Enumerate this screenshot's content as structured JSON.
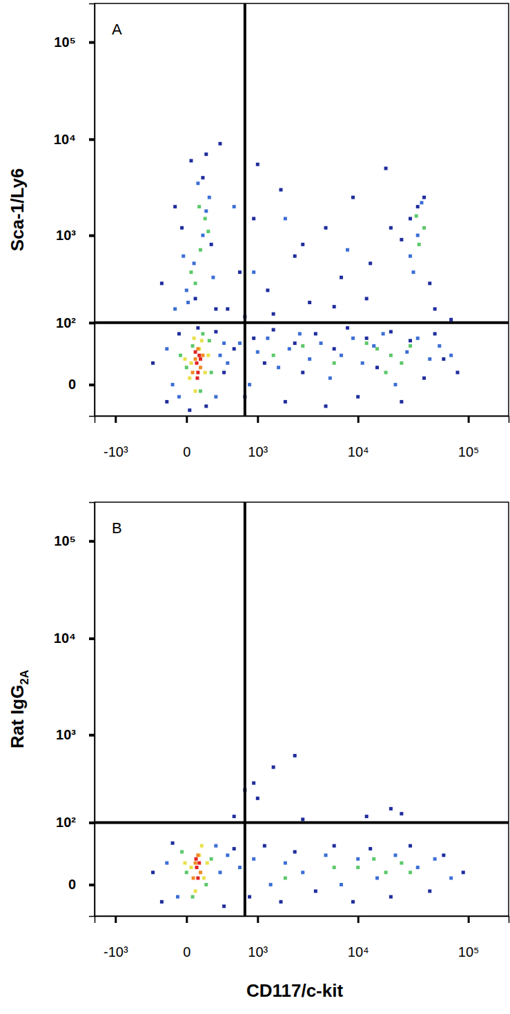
{
  "chart_data": [
    {
      "type": "scatter",
      "title": "A",
      "y_label": "Sca-1/Ly6",
      "log": true,
      "marker": "square",
      "xlim": [
        -1700,
        230000
      ],
      "ylim": [
        -33,
        250000
      ],
      "xticks": [
        {
          "value": -1000,
          "label": "-10³"
        },
        0,
        {
          "value": 1000,
          "label": "10³"
        },
        {
          "value": 10000,
          "label": "10⁴"
        },
        {
          "value": 100000,
          "label": "10⁵"
        }
      ],
      "yticks": [
        0,
        {
          "value": 100,
          "label": "10²"
        },
        {
          "value": 1000,
          "label": "10³"
        },
        {
          "value": 10000,
          "label": "10⁴"
        },
        {
          "value": 100000,
          "label": "10⁵"
        }
      ],
      "quadrant": {
        "x": 700,
        "y": 100
      },
      "series": [
        {
          "color": "#1f2d9e",
          "x": [
            -300,
            -150,
            -50,
            20,
            80,
            150,
            250,
            350,
            500,
            700,
            900,
            1200,
            1500,
            2000,
            2500,
            3000,
            4000,
            5000,
            6000,
            8000,
            10000,
            12000,
            15000,
            20000,
            25000,
            30000,
            40000,
            50000,
            60000,
            80000,
            -200,
            -80,
            30,
            120,
            200,
            400,
            600,
            900,
            1300,
            1800,
            2500,
            3500,
            5000,
            7000,
            9000,
            13000,
            18000,
            25000,
            35000,
            45000,
            30000,
            40000,
            1000,
            300,
            150,
            -30,
            60,
            250,
            700,
            1500,
            3000,
            6000,
            12000,
            20000,
            50000,
            70000
          ],
          "values": [
            20,
            -15,
            70,
            -25,
            85,
            -20,
            75,
            10,
            40,
            -10,
            60,
            20,
            80,
            -15,
            50,
            10,
            70,
            -20,
            40,
            85,
            -10,
            60,
            15,
            75,
            -15,
            55,
            5,
            70,
            25,
            10,
            300,
            2000,
            6000,
            4000,
            800,
            150,
            400,
            1500,
            250,
            3000,
            600,
            180,
            1200,
            350,
            2500,
            500,
            5000,
            900,
            2000,
            300,
            1500,
            2500,
            5500,
            9000,
            7000,
            1200,
            200,
            150,
            120,
            130,
            800,
            160,
            200,
            1200,
            150,
            110
          ]
        },
        {
          "color": "#3c6fd6",
          "x": [
            -150,
            -100,
            -50,
            300,
            350,
            250,
            400,
            600,
            800,
            1000,
            1300,
            1700,
            2200,
            2800,
            3500,
            4500,
            5500,
            7000,
            9000,
            11000,
            14000,
            17000,
            22000,
            28000,
            35000,
            45000,
            55000,
            70000,
            -80,
            0,
            50,
            120,
            180,
            80,
            -20,
            220,
            10,
            150,
            30000,
            35000,
            38000,
            32000,
            8000,
            2000,
            500,
            900
          ],
          "values": [
            40,
            0,
            -10,
            30,
            50,
            -10,
            20,
            50,
            0,
            35,
            60,
            15,
            40,
            70,
            25,
            50,
            5,
            30,
            60,
            20,
            45,
            70,
            0,
            35,
            60,
            25,
            45,
            30,
            150,
            250,
            500,
            1000,
            2500,
            3500,
            600,
            350,
            180,
            1800,
            600,
            1000,
            2200,
            400,
            700,
            1500,
            2000,
            400
          ]
        },
        {
          "color": "#5cc86a",
          "x": [
            0,
            100,
            180,
            -40,
            200,
            120,
            40,
            60,
            100,
            140,
            90,
            30,
            170,
            20000,
            15000,
            25000,
            12000,
            30000,
            18000,
            1500,
            3000,
            6000,
            36000,
            34000,
            40000
          ],
          "values": [
            15,
            -5,
            55,
            30,
            10,
            70,
            45,
            300,
            700,
            1500,
            2000,
            400,
            1100,
            30,
            40,
            20,
            50,
            45,
            10,
            30,
            45,
            20,
            800,
            1600,
            1200
          ]
        },
        {
          "color": "#e8e04a",
          "x": [
            30,
            90,
            140,
            60,
            110,
            -10,
            170,
            50,
            20
          ],
          "values": [
            20,
            40,
            10,
            -5,
            55,
            25,
            30,
            60,
            5
          ]
        },
        {
          "color": "#f08a24",
          "x": [
            60,
            100,
            80,
            40,
            120
          ],
          "values": [
            25,
            15,
            40,
            10,
            30
          ]
        },
        {
          "color": "#e02424",
          "x": [
            70,
            90,
            80,
            60,
            100,
            75
          ],
          "values": [
            20,
            30,
            10,
            35,
            25,
            5
          ]
        }
      ]
    },
    {
      "type": "scatter",
      "title": "B",
      "y_label": "Rat IgG2A",
      "x_label": "CD117/c-kit",
      "log": true,
      "marker": "square",
      "xlim": [
        -1700,
        230000
      ],
      "ylim": [
        -33,
        250000
      ],
      "xticks": [
        {
          "value": -1000,
          "label": "-10³"
        },
        0,
        {
          "value": 1000,
          "label": "10³"
        },
        {
          "value": 10000,
          "label": "10⁴"
        },
        {
          "value": 100000,
          "label": "10⁵"
        }
      ],
      "yticks": [
        0,
        {
          "value": 100,
          "label": "10²"
        },
        {
          "value": 1000,
          "label": "10³"
        },
        {
          "value": 10000,
          "label": "10⁴"
        },
        {
          "value": 100000,
          "label": "10⁵"
        }
      ],
      "quadrant": {
        "x": 700,
        "y": 100
      },
      "series": [
        {
          "color": "#1f2d9e",
          "x": [
            -300,
            -200,
            -100,
            350,
            500,
            800,
            1200,
            1800,
            2500,
            4000,
            6000,
            9000,
            13000,
            20000,
            30000,
            45000,
            60000,
            90000,
            1000,
            1500,
            2500,
            900,
            700,
            500,
            20000,
            25000,
            3000,
            12000
          ],
          "values": [
            10,
            -15,
            50,
            -20,
            40,
            -10,
            45,
            -15,
            35,
            -5,
            45,
            -15,
            40,
            -10,
            45,
            -5,
            30,
            10,
            200,
            450,
            600,
            300,
            250,
            120,
            150,
            130,
            110,
            120
          ]
        },
        {
          "color": "#3c6fd6",
          "x": [
            -150,
            300,
            400,
            600,
            900,
            1400,
            2000,
            3000,
            5000,
            7000,
            10000,
            15000,
            22000,
            35000,
            50000,
            70000,
            -60,
            250
          ],
          "values": [
            20,
            10,
            30,
            15,
            25,
            0,
            20,
            10,
            30,
            0,
            25,
            5,
            30,
            15,
            25,
            5,
            -10,
            45
          ]
        },
        {
          "color": "#5cc86a",
          "x": [
            0,
            150,
            200,
            -30,
            40,
            10000,
            14000,
            18000,
            25000,
            30000,
            6000,
            2000
          ],
          "values": [
            10,
            0,
            25,
            35,
            -10,
            15,
            25,
            10,
            20,
            10,
            15,
            5
          ]
        },
        {
          "color": "#e8e04a",
          "x": [
            30,
            90,
            130,
            60,
            110,
            -10,
            160
          ],
          "values": [
            15,
            30,
            5,
            -5,
            45,
            20,
            20
          ]
        },
        {
          "color": "#f08a24",
          "x": [
            60,
            100,
            80,
            45
          ],
          "values": [
            20,
            10,
            30,
            5
          ]
        },
        {
          "color": "#e02424",
          "x": [
            70,
            90,
            80,
            65
          ],
          "values": [
            15,
            20,
            5,
            25
          ]
        }
      ]
    }
  ]
}
